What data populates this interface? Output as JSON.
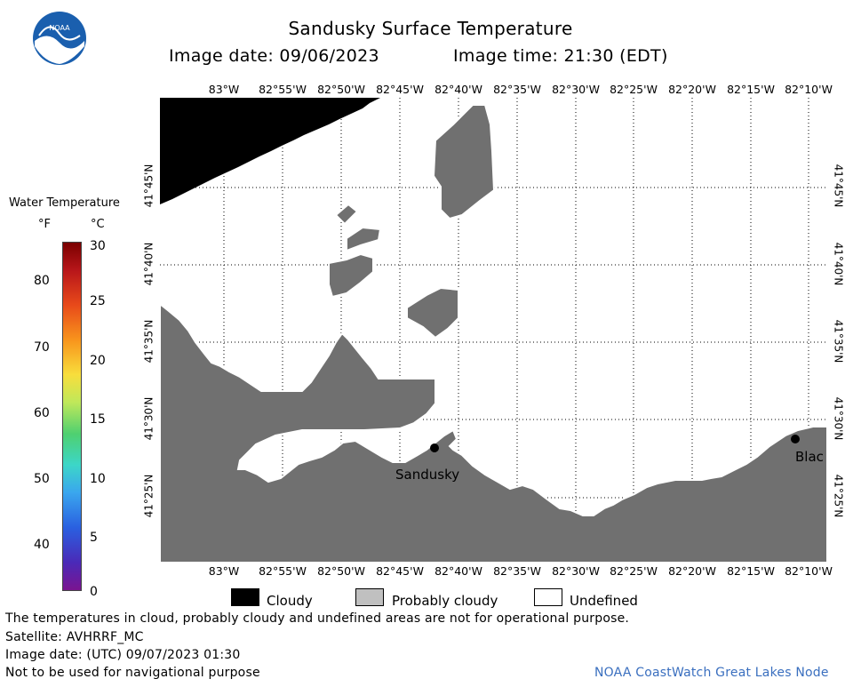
{
  "header": {
    "title": "Sandusky Surface Temperature",
    "image_date": "Image date: 09/06/2023",
    "image_time": "Image time: 21:30 (EDT)"
  },
  "logo": {
    "text": "NOAA"
  },
  "colorbar": {
    "title": "Water Temperature",
    "unit_f": "°F",
    "unit_c": "°C",
    "f_ticks": [
      "80",
      "70",
      "60",
      "50",
      "40"
    ],
    "c_ticks": [
      "30",
      "25",
      "20",
      "15",
      "10",
      "5",
      "0"
    ]
  },
  "map": {
    "lon_labels": [
      "83°W",
      "82°55'W",
      "82°50'W",
      "82°45'W",
      "82°40'W",
      "82°35'W",
      "82°30'W",
      "82°25'W",
      "82°20'W",
      "82°15'W",
      "82°10'W"
    ],
    "lat_labels": [
      "41°45'N",
      "41°40'N",
      "41°35'N",
      "41°30'N",
      "41°25'N"
    ],
    "place_labels": {
      "sandusky": "Sandusky",
      "blac": "Blac"
    },
    "colors": {
      "land": "#707070",
      "cloud": "#000000",
      "water": "#ffffff"
    }
  },
  "legend": {
    "cloudy": "Cloudy",
    "probably_cloudy": "Probably cloudy",
    "undefined": "Undefined",
    "colors": {
      "cloudy": "#000000",
      "probably_cloudy": "#c0c0c0",
      "undefined": "#ffffff"
    }
  },
  "footer": {
    "disclaimer": "The temperatures in cloud, probably cloudy and undefined areas are not for operational purpose.",
    "satellite": "Satellite: AVHRRF_MC",
    "image_date_utc": "Image date: (UTC) 09/07/2023  01:30",
    "nav_warning": "Not to be used for navigational purpose",
    "credit": "NOAA CoastWatch Great Lakes Node"
  }
}
